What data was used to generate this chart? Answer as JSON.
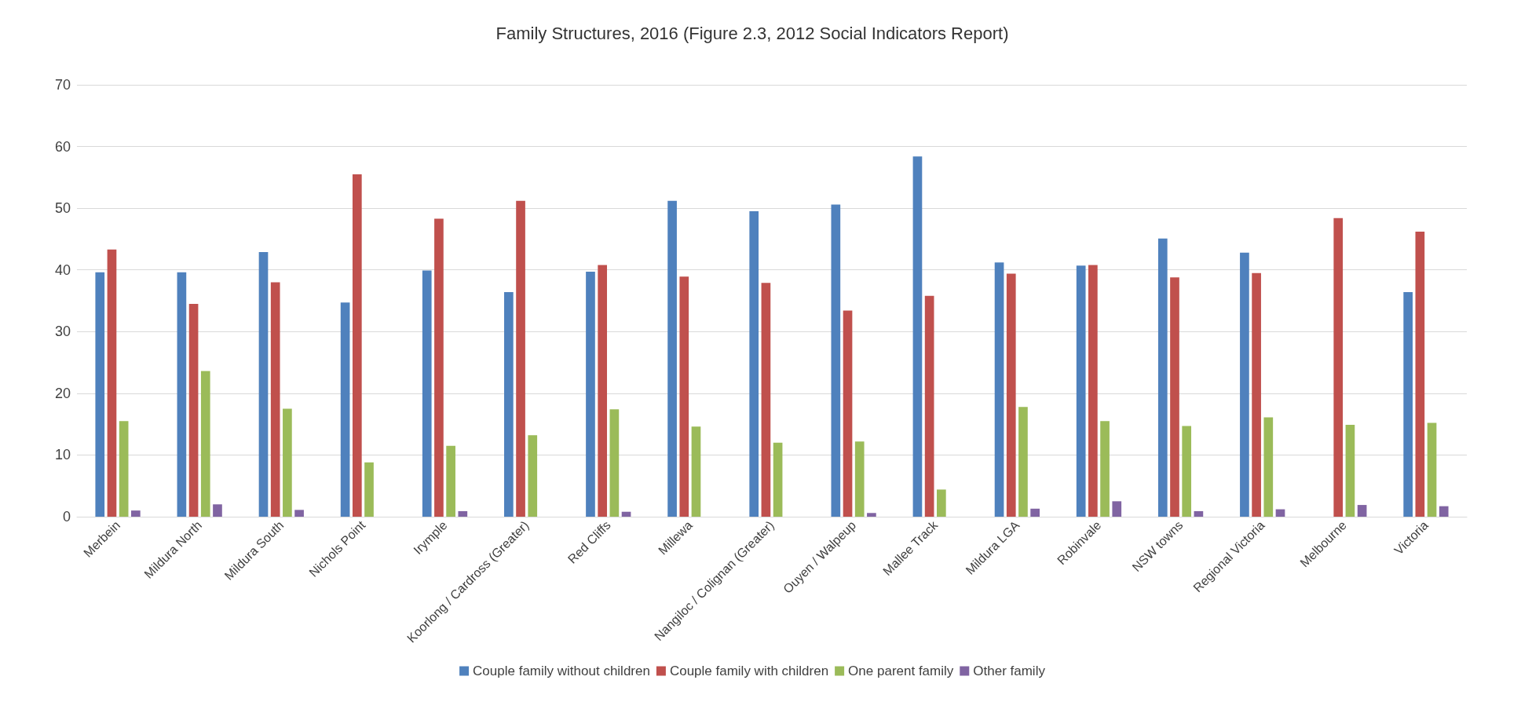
{
  "chart_data": {
    "type": "bar",
    "title": "Family Structures, 2016 (Figure 2.3, 2012 Social Indicators Report)",
    "categories": [
      "Merbein",
      "Mildura North",
      "Mildura South",
      "Nichols Point",
      "Irymple",
      "Koorlong / Cardross (Greater)",
      "Red Cliffs",
      "Millewa",
      "Nangiloc / Colignan (Greater)",
      "Ouyen / Walpeup",
      "Mallee Track",
      "Mildura LGA",
      "Robinvale",
      "NSW towns",
      "Regional Victoria",
      "Melbourne",
      "Victoria"
    ],
    "series": [
      {
        "name": "Couple family without children",
        "color": "#4f81bd",
        "values": [
          39.6,
          39.6,
          42.9,
          34.7,
          39.9,
          36.4,
          39.7,
          51.2,
          49.5,
          50.6,
          58.4,
          41.2,
          40.7,
          45.1,
          42.8,
          null,
          36.4
        ]
      },
      {
        "name": "Couple family with children",
        "color": "#c0504d",
        "values": [
          43.3,
          34.5,
          38.0,
          55.5,
          48.3,
          51.2,
          40.8,
          38.9,
          37.9,
          33.4,
          35.8,
          39.4,
          40.8,
          38.8,
          39.5,
          48.4,
          46.2
        ]
      },
      {
        "name": "One parent family",
        "color": "#9bbb59",
        "values": [
          15.5,
          23.6,
          17.5,
          8.8,
          11.5,
          13.2,
          17.4,
          14.6,
          12.0,
          12.2,
          4.4,
          17.8,
          15.5,
          14.7,
          16.1,
          14.9,
          15.2
        ]
      },
      {
        "name": "Other family",
        "color": "#8064a2",
        "values": [
          1.0,
          2.0,
          1.1,
          null,
          0.9,
          null,
          0.8,
          null,
          null,
          0.6,
          null,
          1.3,
          2.5,
          0.9,
          1.2,
          1.9,
          1.7
        ]
      }
    ],
    "ylim": [
      0,
      70
    ],
    "yticks": [
      0,
      10,
      20,
      30,
      40,
      50,
      60,
      70
    ],
    "grid": "y",
    "legend": "bottom"
  }
}
